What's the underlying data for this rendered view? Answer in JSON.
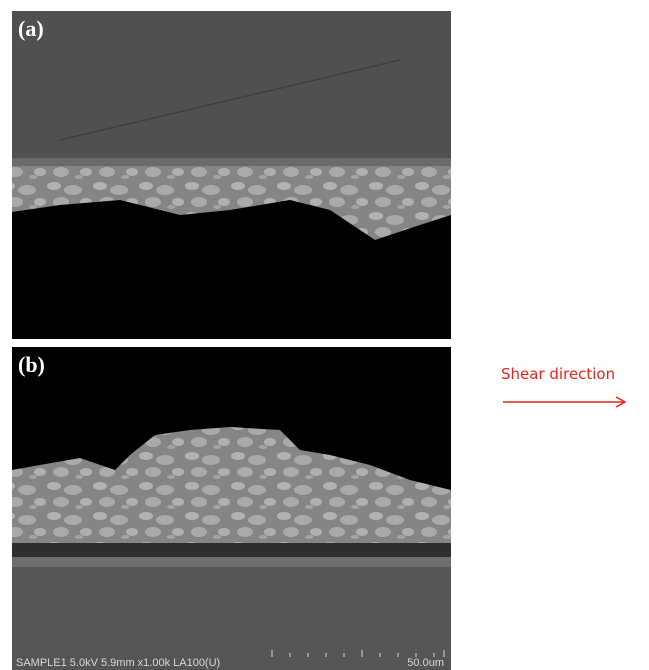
{
  "panels": [
    {
      "label": "(a)"
    },
    {
      "label": "(b)"
    }
  ],
  "annotation": {
    "text": "Shear direction"
  },
  "scale_bar": {
    "info": "SAMPLE1 5.0kV 5.9mm x1.00k LA100(U)",
    "length": "50.0um"
  }
}
